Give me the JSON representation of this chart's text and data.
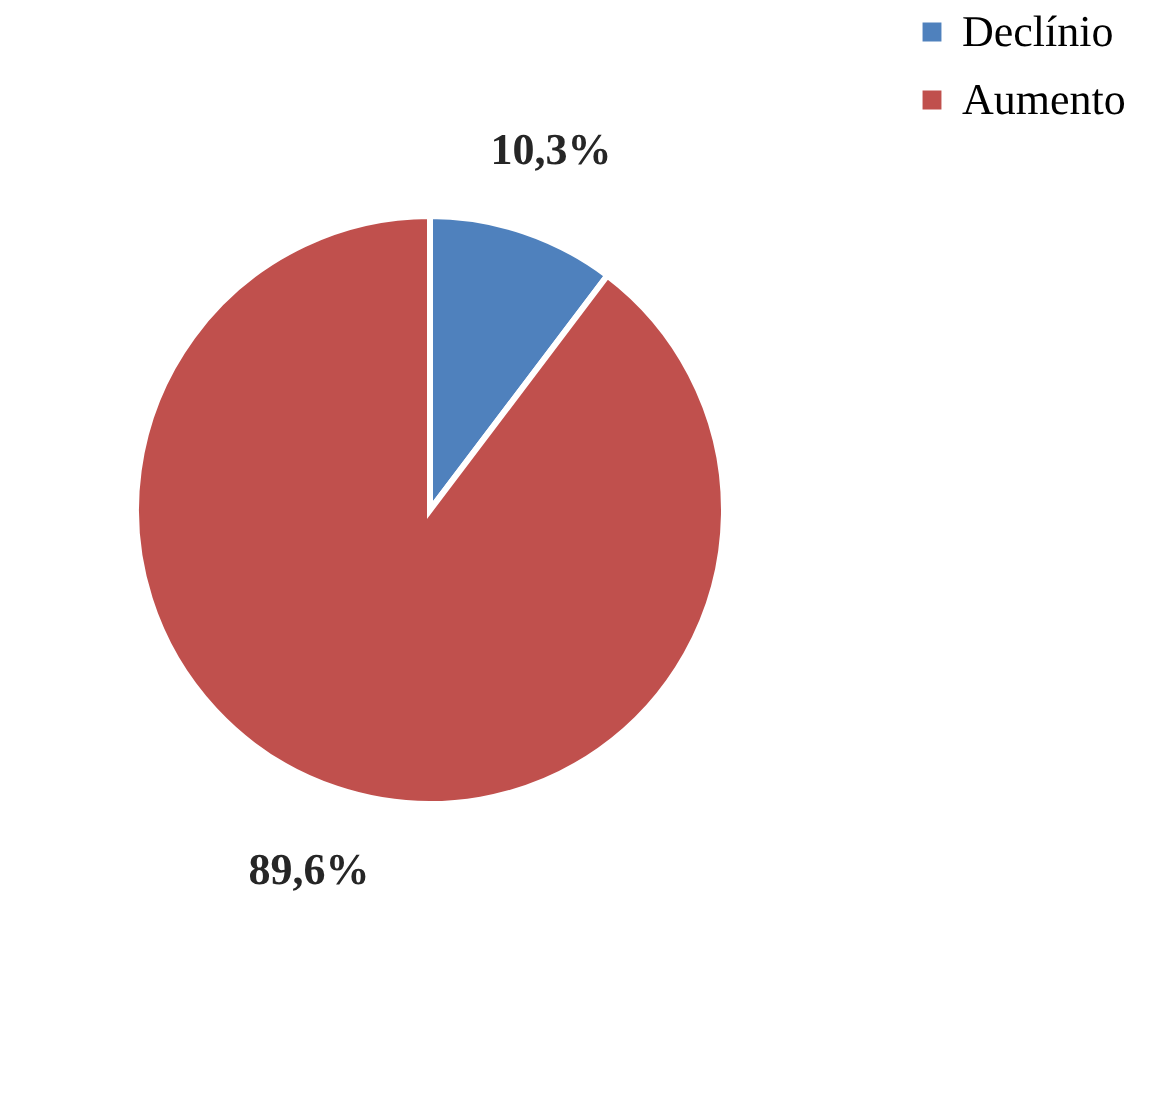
{
  "chart_data": {
    "type": "pie",
    "categories": [
      "Declínio",
      "Aumento"
    ],
    "values": [
      10.3,
      89.6
    ],
    "colors": [
      "#4f81bd",
      "#c0504d"
    ],
    "value_labels": [
      "10,3%",
      "89,6%"
    ],
    "legend": "right"
  }
}
